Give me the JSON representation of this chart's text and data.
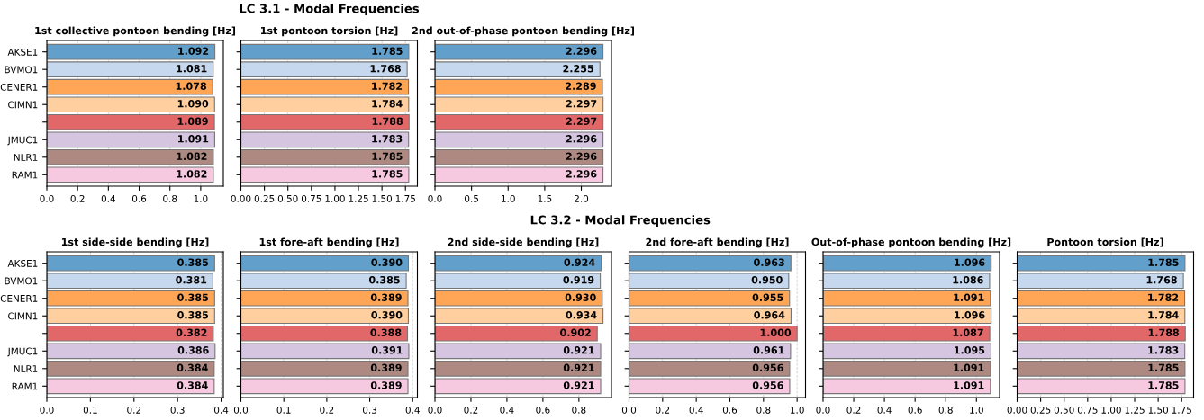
{
  "chart_data": [
    {
      "type": "bar",
      "orientation": "horizontal",
      "annotations": [
        "LC 3.1 - Modal Frequencies"
      ],
      "title": "1st collective pontoon bending [Hz]",
      "categories": [
        "AKSE1",
        "BVMO1",
        "CENER1",
        "CIMN1",
        null,
        "JMUC1",
        "NLR1",
        "RAM1"
      ],
      "values": [
        1.092,
        1.081,
        1.078,
        1.09,
        1.089,
        1.091,
        1.082,
        1.082
      ],
      "value_labels": [
        "1.092",
        "1.081",
        "1.078",
        "1.090",
        "1.089",
        "1.091",
        "1.082",
        "1.082"
      ],
      "colors": [
        "#629fca",
        "#c6d8ee",
        "#ffa556",
        "#ffcf9f",
        "#e26769",
        "#d5c5e1",
        "#ad8981",
        "#f7c9e0"
      ],
      "xlim": [
        0,
        1.147
      ],
      "xticks": [
        {
          "value": 0,
          "label": "0.0"
        },
        0.2,
        0.4,
        0.6,
        0.8,
        {
          "value": 1,
          "label": "1.0"
        }
      ],
      "grid": "x"
    },
    {
      "type": "bar",
      "orientation": "horizontal",
      "title": "1st pontoon torsion [Hz]",
      "categories": [
        null,
        null,
        null,
        null,
        null,
        null,
        null,
        null
      ],
      "values": [
        1.785,
        1.768,
        1.782,
        1.784,
        1.788,
        1.783,
        1.785,
        1.785
      ],
      "value_labels": [
        "1.785",
        "1.768",
        "1.782",
        "1.784",
        "1.788",
        "1.783",
        "1.785",
        "1.785"
      ],
      "colors": [
        "#629fca",
        "#c6d8ee",
        "#ffa556",
        "#ffcf9f",
        "#e26769",
        "#d5c5e1",
        "#ad8981",
        "#f7c9e0"
      ],
      "xlim": [
        0,
        1.877
      ],
      "xticks": [
        {
          "value": 0,
          "label": "0.00"
        },
        0.25,
        {
          "value": 0.5,
          "label": "0.50"
        },
        0.75,
        {
          "value": 1,
          "label": "1.00"
        },
        1.25,
        {
          "value": 1.5,
          "label": "1.50"
        },
        1.75
      ],
      "grid": "x"
    },
    {
      "type": "bar",
      "orientation": "horizontal",
      "title": "2nd out-of-phase pontoon bending [Hz]",
      "categories": [
        null,
        null,
        null,
        null,
        null,
        null,
        null,
        null
      ],
      "values": [
        2.296,
        2.255,
        2.289,
        2.297,
        2.297,
        2.296,
        2.296,
        2.296
      ],
      "value_labels": [
        "2.296",
        "2.255",
        "2.289",
        "2.297",
        "2.297",
        "2.296",
        "2.296",
        "2.296"
      ],
      "colors": [
        "#629fca",
        "#c6d8ee",
        "#ffa556",
        "#ffcf9f",
        "#e26769",
        "#d5c5e1",
        "#ad8981",
        "#f7c9e0"
      ],
      "xlim": [
        0,
        2.412
      ],
      "xticks": [
        {
          "value": 0,
          "label": "0.0"
        },
        0.5,
        {
          "value": 1,
          "label": "1.0"
        },
        1.5,
        {
          "value": 2,
          "label": "2.0"
        }
      ],
      "grid": "x"
    },
    {
      "type": "bar",
      "orientation": "horizontal",
      "annotations": [
        "LC 3.2 - Modal Frequencies"
      ],
      "title": "1st side-side bending [Hz]",
      "categories": [
        "AKSE1",
        "BVMO1",
        "CENER1",
        "CIMN1",
        null,
        "JMUC1",
        "NLR1",
        "RAM1"
      ],
      "values": [
        0.385,
        0.381,
        0.385,
        0.385,
        0.382,
        0.386,
        0.384,
        0.384
      ],
      "value_labels": [
        "0.385",
        "0.381",
        "0.385",
        "0.385",
        "0.382",
        "0.386",
        "0.384",
        "0.384"
      ],
      "colors": [
        "#629fca",
        "#c6d8ee",
        "#ffa556",
        "#ffcf9f",
        "#e26769",
        "#d5c5e1",
        "#ad8981",
        "#f7c9e0"
      ],
      "xlim": [
        0,
        0.405
      ],
      "xticks": [
        {
          "value": 0,
          "label": "0.0"
        },
        0.1,
        0.2,
        0.3,
        0.4
      ],
      "grid": "x"
    },
    {
      "type": "bar",
      "orientation": "horizontal",
      "title": "1st fore-aft bending [Hz]",
      "categories": [
        null,
        null,
        null,
        null,
        null,
        null,
        null,
        null
      ],
      "values": [
        0.39,
        0.385,
        0.389,
        0.39,
        0.388,
        0.391,
        0.389,
        0.389
      ],
      "value_labels": [
        "0.390",
        "0.385",
        "0.389",
        "0.390",
        "0.388",
        "0.391",
        "0.389",
        "0.389"
      ],
      "colors": [
        "#629fca",
        "#c6d8ee",
        "#ffa556",
        "#ffcf9f",
        "#e26769",
        "#d5c5e1",
        "#ad8981",
        "#f7c9e0"
      ],
      "xlim": [
        0,
        0.411
      ],
      "xticks": [
        {
          "value": 0,
          "label": "0.0"
        },
        0.1,
        0.2,
        0.3,
        0.4
      ],
      "grid": "x"
    },
    {
      "type": "bar",
      "orientation": "horizontal",
      "title": "2nd side-side bending [Hz]",
      "categories": [
        null,
        null,
        null,
        null,
        null,
        null,
        null,
        null
      ],
      "values": [
        0.924,
        0.919,
        0.93,
        0.934,
        0.902,
        0.921,
        0.921,
        0.921
      ],
      "value_labels": [
        "0.924",
        "0.919",
        "0.930",
        "0.934",
        "0.902",
        "0.921",
        "0.921",
        "0.921"
      ],
      "colors": [
        "#629fca",
        "#c6d8ee",
        "#ffa556",
        "#ffcf9f",
        "#e26769",
        "#d5c5e1",
        "#ad8981",
        "#f7c9e0"
      ],
      "xlim": [
        0,
        0.981
      ],
      "xticks": [
        {
          "value": 0,
          "label": "0.0"
        },
        0.2,
        0.4,
        0.6,
        0.8
      ],
      "grid": "x"
    },
    {
      "type": "bar",
      "orientation": "horizontal",
      "title": "2nd fore-aft bending [Hz]",
      "categories": [
        null,
        null,
        null,
        null,
        null,
        null,
        null,
        null
      ],
      "values": [
        0.963,
        0.95,
        0.955,
        0.964,
        1.0,
        0.961,
        0.956,
        0.956
      ],
      "value_labels": [
        "0.963",
        "0.950",
        "0.955",
        "0.964",
        "1.000",
        "0.961",
        "0.956",
        "0.956"
      ],
      "colors": [
        "#629fca",
        "#c6d8ee",
        "#ffa556",
        "#ffcf9f",
        "#e26769",
        "#d5c5e1",
        "#ad8981",
        "#f7c9e0"
      ],
      "xlim": [
        0,
        1.05
      ],
      "xticks": [
        {
          "value": 0,
          "label": "0.0"
        },
        0.2,
        0.4,
        0.6,
        0.8,
        {
          "value": 1,
          "label": "1.0"
        }
      ],
      "grid": "x"
    },
    {
      "type": "bar",
      "orientation": "horizontal",
      "title": "Out-of-phase pontoon bending [Hz]",
      "categories": [
        null,
        null,
        null,
        null,
        null,
        null,
        null,
        null
      ],
      "values": [
        1.096,
        1.086,
        1.091,
        1.096,
        1.087,
        1.095,
        1.091,
        1.091
      ],
      "value_labels": [
        "1.096",
        "1.086",
        "1.091",
        "1.096",
        "1.087",
        "1.095",
        "1.091",
        "1.091"
      ],
      "colors": [
        "#629fca",
        "#c6d8ee",
        "#ffa556",
        "#ffcf9f",
        "#e26769",
        "#d5c5e1",
        "#ad8981",
        "#f7c9e0"
      ],
      "xlim": [
        0,
        1.151
      ],
      "xticks": [
        {
          "value": 0,
          "label": "0.0"
        },
        0.2,
        0.4,
        0.6,
        0.8,
        {
          "value": 1,
          "label": "1.0"
        }
      ],
      "grid": "x"
    },
    {
      "type": "bar",
      "orientation": "horizontal",
      "title": "Pontoon torsion [Hz]",
      "categories": [
        null,
        null,
        null,
        null,
        null,
        null,
        null,
        null
      ],
      "values": [
        1.785,
        1.768,
        1.782,
        1.784,
        1.788,
        1.783,
        1.785,
        1.785
      ],
      "value_labels": [
        "1.785",
        "1.768",
        "1.782",
        "1.784",
        "1.788",
        "1.783",
        "1.785",
        "1.785"
      ],
      "colors": [
        "#629fca",
        "#c6d8ee",
        "#ffa556",
        "#ffcf9f",
        "#e26769",
        "#d5c5e1",
        "#ad8981",
        "#f7c9e0"
      ],
      "xlim": [
        0,
        1.877
      ],
      "xticks": [
        {
          "value": 0,
          "label": "0.00"
        },
        0.25,
        {
          "value": 0.5,
          "label": "0.50"
        },
        0.75,
        {
          "value": 1,
          "label": "1.00"
        },
        1.25,
        {
          "value": 1.5,
          "label": "1.50"
        },
        1.75
      ],
      "grid": "x"
    }
  ]
}
